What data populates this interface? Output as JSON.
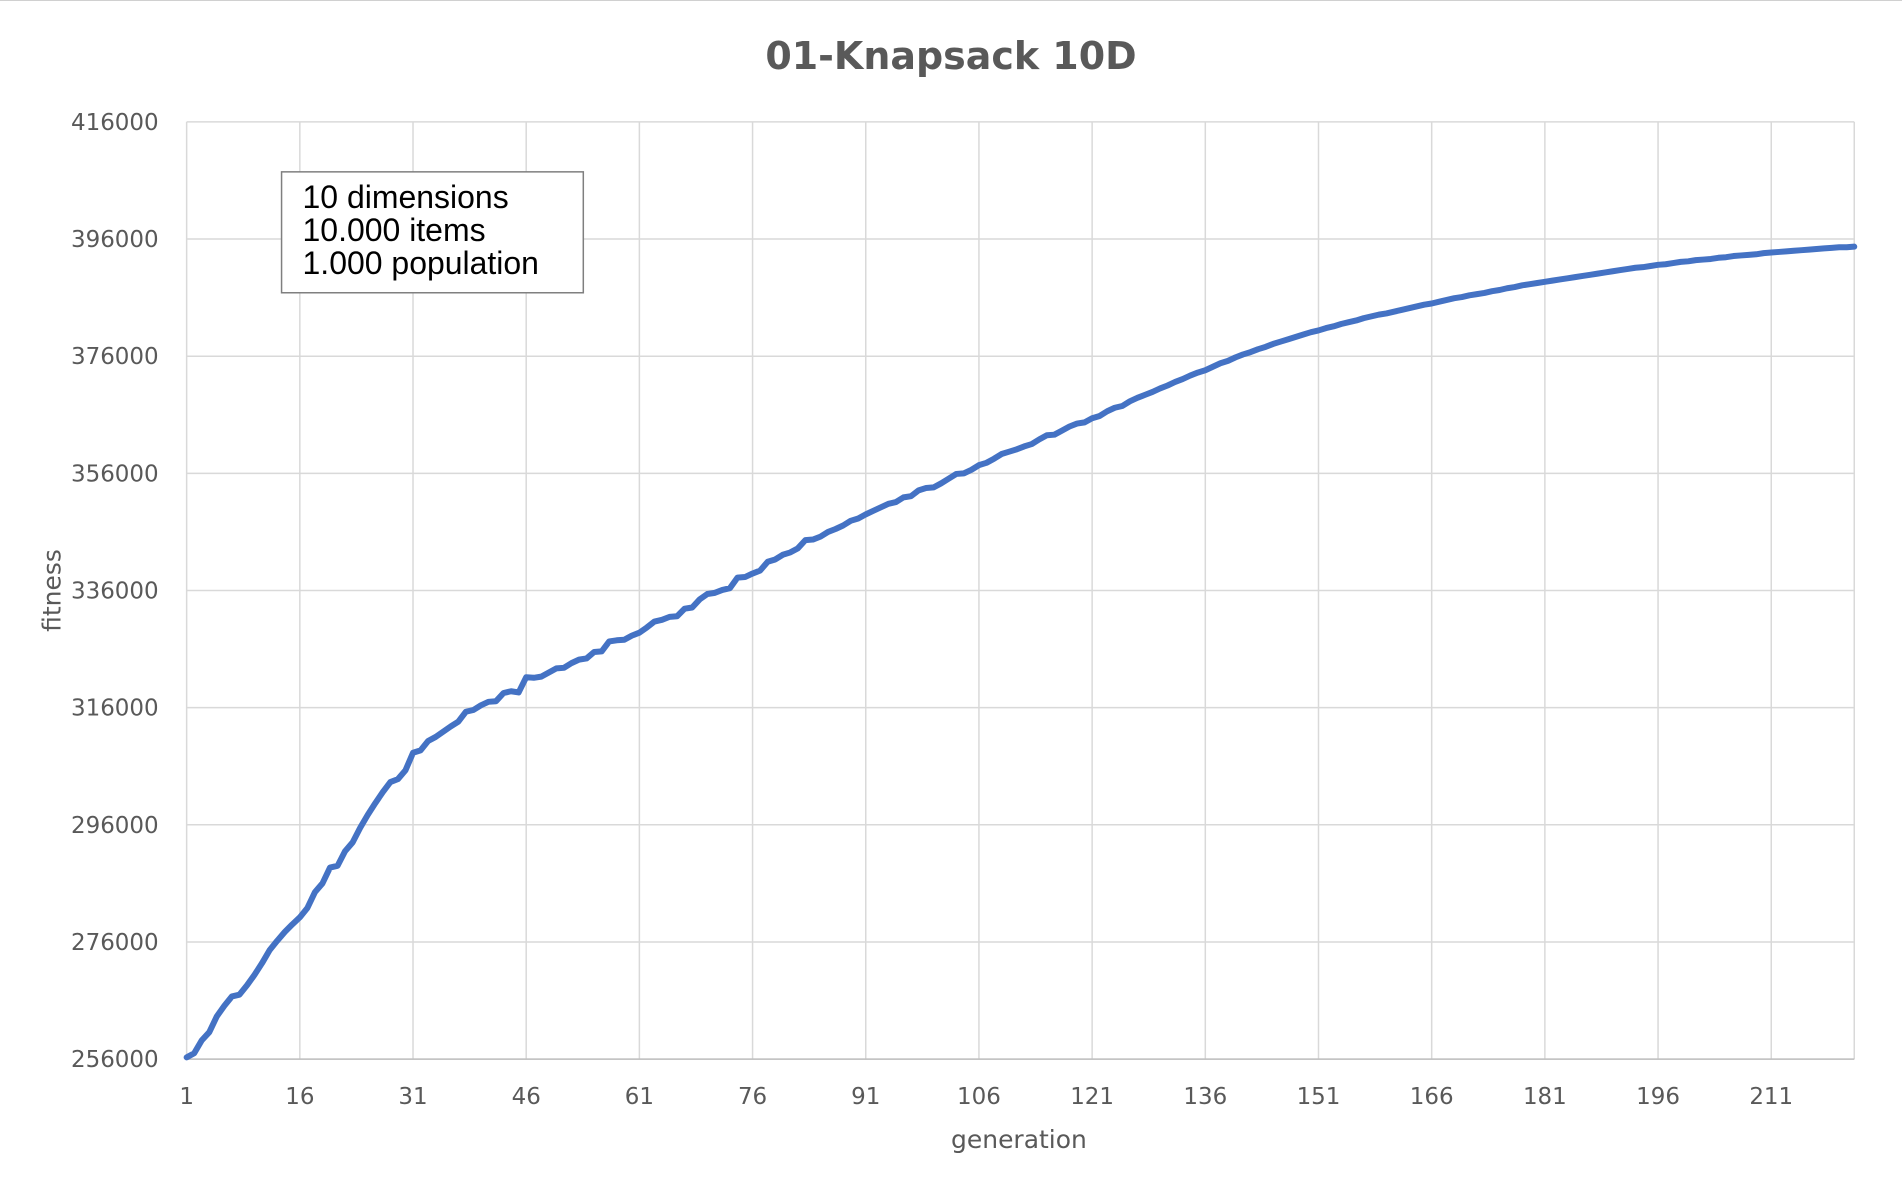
{
  "colors": {
    "series": "#4472c4",
    "grid": "#d9d9d9",
    "text": "#595959",
    "annotation_border": "#7f7f7f"
  },
  "chart_data": {
    "type": "line",
    "title": "01-Knapsack 10D",
    "xlabel": "generation",
    "ylabel": "fitness",
    "x_ticks": [
      "1",
      "16",
      "31",
      "46",
      "61",
      "76",
      "91",
      "106",
      "121",
      "136",
      "151",
      "166",
      "181",
      "196",
      "211"
    ],
    "y_ticks": [
      "256000",
      "276000",
      "296000",
      "316000",
      "336000",
      "356000",
      "376000",
      "396000",
      "416000"
    ],
    "xlim": [
      1,
      222
    ],
    "ylim": [
      256000,
      416000
    ],
    "grid": true,
    "legend": "none",
    "annotation": {
      "placement": "top-left",
      "lines": [
        "10 dimensions",
        "10.000 items",
        "1.000 population"
      ]
    },
    "series": [
      {
        "points": [
          [
            1,
            256300
          ],
          [
            2,
            257000
          ],
          [
            3,
            259200
          ],
          [
            4,
            260600
          ],
          [
            5,
            263300
          ],
          [
            6,
            265100
          ],
          [
            7,
            266700
          ],
          [
            8,
            267000
          ],
          [
            9,
            268600
          ],
          [
            10,
            270400
          ],
          [
            11,
            272400
          ],
          [
            12,
            274600
          ],
          [
            13,
            276200
          ],
          [
            14,
            277700
          ],
          [
            15,
            279000
          ],
          [
            16,
            280200
          ],
          [
            17,
            281800
          ],
          [
            18,
            284500
          ],
          [
            19,
            286000
          ],
          [
            20,
            288700
          ],
          [
            21,
            289000
          ],
          [
            22,
            291500
          ],
          [
            23,
            293000
          ],
          [
            24,
            295500
          ],
          [
            25,
            297700
          ],
          [
            26,
            299700
          ],
          [
            27,
            301600
          ],
          [
            28,
            303300
          ],
          [
            29,
            303800
          ],
          [
            30,
            305300
          ],
          [
            31,
            308300
          ],
          [
            32,
            308700
          ],
          [
            33,
            310300
          ],
          [
            34,
            311000
          ],
          [
            35,
            311900
          ],
          [
            36,
            312800
          ],
          [
            37,
            313600
          ],
          [
            38,
            315300
          ],
          [
            39,
            315600
          ],
          [
            40,
            316400
          ],
          [
            41,
            317000
          ],
          [
            42,
            317100
          ],
          [
            43,
            318500
          ],
          [
            44,
            318800
          ],
          [
            45,
            318600
          ],
          [
            46,
            321200
          ],
          [
            47,
            321100
          ],
          [
            48,
            321300
          ],
          [
            49,
            322000
          ],
          [
            50,
            322700
          ],
          [
            51,
            322800
          ],
          [
            52,
            323600
          ],
          [
            53,
            324200
          ],
          [
            54,
            324400
          ],
          [
            55,
            325500
          ],
          [
            56,
            325600
          ],
          [
            57,
            327300
          ],
          [
            58,
            327500
          ],
          [
            59,
            327600
          ],
          [
            60,
            328300
          ],
          [
            61,
            328800
          ],
          [
            62,
            329700
          ],
          [
            63,
            330700
          ],
          [
            64,
            331000
          ],
          [
            65,
            331500
          ],
          [
            66,
            331600
          ],
          [
            67,
            332900
          ],
          [
            68,
            333100
          ],
          [
            69,
            334500
          ],
          [
            70,
            335400
          ],
          [
            71,
            335600
          ],
          [
            72,
            336100
          ],
          [
            73,
            336400
          ],
          [
            74,
            338200
          ],
          [
            75,
            338300
          ],
          [
            76,
            338900
          ],
          [
            77,
            339400
          ],
          [
            78,
            340900
          ],
          [
            79,
            341300
          ],
          [
            80,
            342100
          ],
          [
            81,
            342500
          ],
          [
            82,
            343200
          ],
          [
            83,
            344600
          ],
          [
            84,
            344700
          ],
          [
            85,
            345200
          ],
          [
            86,
            346000
          ],
          [
            87,
            346500
          ],
          [
            88,
            347100
          ],
          [
            89,
            347900
          ],
          [
            90,
            348300
          ],
          [
            91,
            349000
          ],
          [
            92,
            349600
          ],
          [
            93,
            350200
          ],
          [
            94,
            350800
          ],
          [
            95,
            351100
          ],
          [
            96,
            351900
          ],
          [
            97,
            352100
          ],
          [
            98,
            353100
          ],
          [
            99,
            353500
          ],
          [
            100,
            353600
          ],
          [
            101,
            354300
          ],
          [
            102,
            355100
          ],
          [
            103,
            355900
          ],
          [
            104,
            356000
          ],
          [
            105,
            356600
          ],
          [
            106,
            357400
          ],
          [
            107,
            357800
          ],
          [
            108,
            358500
          ],
          [
            109,
            359300
          ],
          [
            110,
            359700
          ],
          [
            111,
            360100
          ],
          [
            112,
            360600
          ],
          [
            113,
            361000
          ],
          [
            114,
            361800
          ],
          [
            115,
            362500
          ],
          [
            116,
            362600
          ],
          [
            117,
            363300
          ],
          [
            118,
            364000
          ],
          [
            119,
            364500
          ],
          [
            120,
            364700
          ],
          [
            121,
            365400
          ],
          [
            122,
            365800
          ],
          [
            123,
            366600
          ],
          [
            124,
            367200
          ],
          [
            125,
            367500
          ],
          [
            126,
            368300
          ],
          [
            127,
            368900
          ],
          [
            128,
            369400
          ],
          [
            129,
            369900
          ],
          [
            130,
            370500
          ],
          [
            131,
            371000
          ],
          [
            132,
            371600
          ],
          [
            133,
            372100
          ],
          [
            134,
            372700
          ],
          [
            135,
            373200
          ],
          [
            136,
            373600
          ],
          [
            137,
            374200
          ],
          [
            138,
            374800
          ],
          [
            139,
            375200
          ],
          [
            140,
            375800
          ],
          [
            141,
            376300
          ],
          [
            142,
            376700
          ],
          [
            143,
            377200
          ],
          [
            144,
            377600
          ],
          [
            145,
            378100
          ],
          [
            146,
            378500
          ],
          [
            147,
            378900
          ],
          [
            148,
            379300
          ],
          [
            149,
            379700
          ],
          [
            150,
            380100
          ],
          [
            151,
            380400
          ],
          [
            152,
            380800
          ],
          [
            153,
            381100
          ],
          [
            154,
            381500
          ],
          [
            155,
            381800
          ],
          [
            156,
            382100
          ],
          [
            157,
            382500
          ],
          [
            158,
            382800
          ],
          [
            159,
            383100
          ],
          [
            160,
            383300
          ],
          [
            161,
            383600
          ],
          [
            162,
            383900
          ],
          [
            163,
            384200
          ],
          [
            164,
            384500
          ],
          [
            165,
            384800
          ],
          [
            166,
            385000
          ],
          [
            167,
            385300
          ],
          [
            168,
            385600
          ],
          [
            169,
            385900
          ],
          [
            170,
            386100
          ],
          [
            171,
            386400
          ],
          [
            172,
            386600
          ],
          [
            173,
            386800
          ],
          [
            174,
            387100
          ],
          [
            175,
            387300
          ],
          [
            176,
            387600
          ],
          [
            177,
            387800
          ],
          [
            178,
            388100
          ],
          [
            179,
            388300
          ],
          [
            180,
            388500
          ],
          [
            181,
            388700
          ],
          [
            182,
            388900
          ],
          [
            183,
            389100
          ],
          [
            184,
            389300
          ],
          [
            185,
            389500
          ],
          [
            186,
            389700
          ],
          [
            187,
            389900
          ],
          [
            188,
            390100
          ],
          [
            189,
            390300
          ],
          [
            190,
            390500
          ],
          [
            191,
            390700
          ],
          [
            192,
            390900
          ],
          [
            193,
            391100
          ],
          [
            194,
            391200
          ],
          [
            195,
            391400
          ],
          [
            196,
            391600
          ],
          [
            197,
            391700
          ],
          [
            198,
            391900
          ],
          [
            199,
            392100
          ],
          [
            200,
            392200
          ],
          [
            201,
            392400
          ],
          [
            202,
            392500
          ],
          [
            203,
            392600
          ],
          [
            204,
            392800
          ],
          [
            205,
            392900
          ],
          [
            206,
            393100
          ],
          [
            207,
            393200
          ],
          [
            208,
            393300
          ],
          [
            209,
            393400
          ],
          [
            210,
            393600
          ],
          [
            211,
            393700
          ],
          [
            212,
            393800
          ],
          [
            213,
            393900
          ],
          [
            214,
            394000
          ],
          [
            215,
            394100
          ],
          [
            216,
            394200
          ],
          [
            217,
            394300
          ],
          [
            218,
            394400
          ],
          [
            219,
            394500
          ],
          [
            220,
            394600
          ],
          [
            221,
            394600
          ],
          [
            222,
            394700
          ]
        ]
      }
    ]
  }
}
